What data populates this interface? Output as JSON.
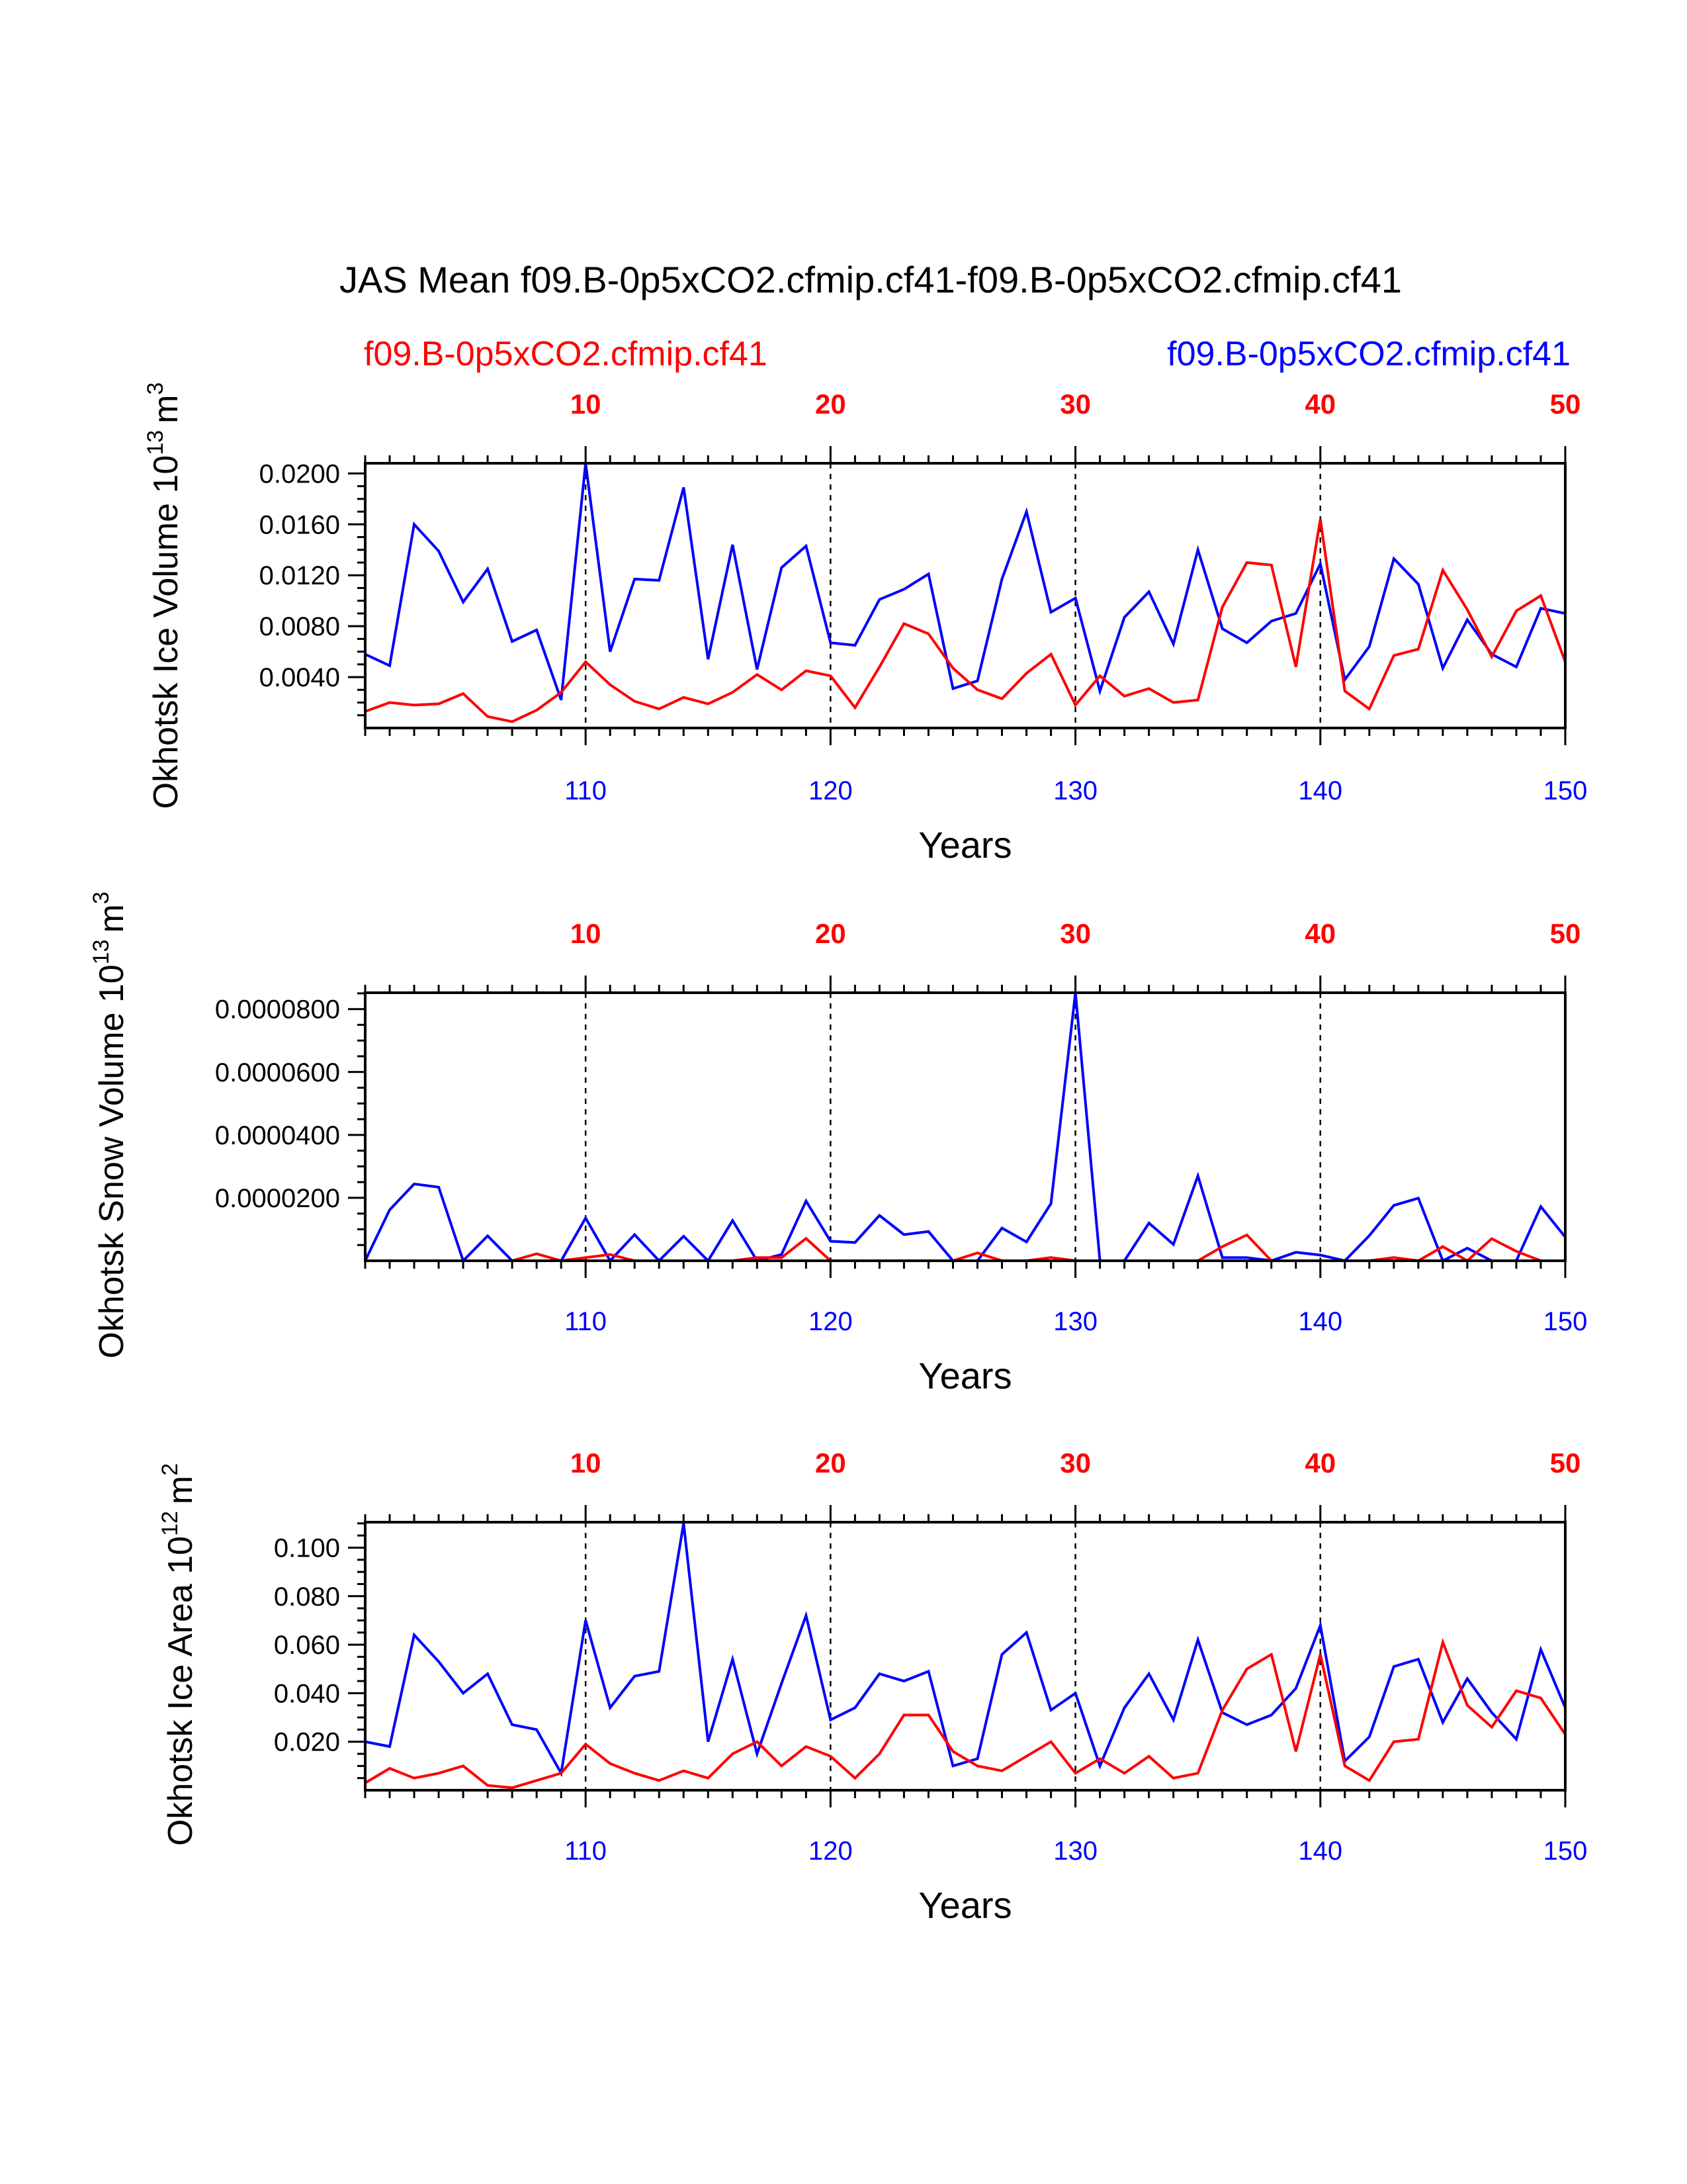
{
  "chart_data": [
    {
      "type": "line",
      "title": "JAS Mean f09.B-0p5xCO2.cfmip.cf41-f09.B-0p5xCO2.cfmip.cf41",
      "legend": [
        {
          "name": "f09.B-0p5xCO2.cfmip.cf41",
          "color": "#ff0000",
          "position": "top-left"
        },
        {
          "name": "f09.B-0p5xCO2.cfmip.cf41",
          "color": "#0000ff",
          "position": "top-right"
        }
      ],
      "ylabel": "Okhotsk Ice Volume 10",
      "ylabel_sup": "13",
      "ylabel_unit": "m",
      "ylabel_unit_sup": "3",
      "xlabel": "Years",
      "xlim": [
        101,
        150
      ],
      "ylim": [
        0.0,
        0.0208
      ],
      "yticks": [
        0.004,
        0.008,
        0.012,
        0.016,
        0.02
      ],
      "ytick_labels": [
        "0.0040",
        "0.0080",
        "0.0120",
        "0.0160",
        "0.0200"
      ],
      "x_bottom_ticks": [
        110,
        120,
        130,
        140,
        150
      ],
      "x_top_tick_labels": [
        "10",
        "20",
        "30",
        "40",
        "50"
      ],
      "x": [
        101,
        102,
        103,
        104,
        105,
        106,
        107,
        108,
        109,
        110,
        111,
        112,
        113,
        114,
        115,
        116,
        117,
        118,
        119,
        120,
        121,
        122,
        123,
        124,
        125,
        126,
        127,
        128,
        129,
        130,
        131,
        132,
        133,
        134,
        135,
        136,
        137,
        138,
        139,
        140,
        141,
        142,
        143,
        144,
        145,
        146,
        147,
        148,
        149,
        150
      ],
      "series": [
        {
          "name": "f09.B-0p5xCO2.cfmip.cf41",
          "color": "#0000ff",
          "values": [
            0.0058,
            0.0049,
            0.016,
            0.0139,
            0.0099,
            0.0125,
            0.0068,
            0.0077,
            0.0022,
            0.0208,
            0.006,
            0.0117,
            0.0116,
            0.0189,
            0.0054,
            0.0144,
            0.0046,
            0.0126,
            0.0143,
            0.0067,
            0.0065,
            0.0101,
            0.0109,
            0.0121,
            0.0031,
            0.0037,
            0.0117,
            0.017,
            0.0091,
            0.0102,
            0.0029,
            0.0087,
            0.0107,
            0.0066,
            0.014,
            0.0078,
            0.0067,
            0.0084,
            0.009,
            0.0129,
            0.0038,
            0.0064,
            0.0133,
            0.0113,
            0.0047,
            0.0085,
            0.0058,
            0.0048,
            0.0094,
            0.009
          ]
        },
        {
          "name": "f09.B-0p5xCO2.cfmip.cf41",
          "color": "#ff0000",
          "values": [
            0.0013,
            0.002,
            0.0018,
            0.0019,
            0.0027,
            0.0009,
            0.0005,
            0.0014,
            0.0028,
            0.0052,
            0.0034,
            0.0021,
            0.0015,
            0.0024,
            0.0019,
            0.0028,
            0.0042,
            0.003,
            0.0045,
            0.0041,
            0.0016,
            0.0048,
            0.0082,
            0.0074,
            0.0047,
            0.003,
            0.0023,
            0.0043,
            0.0058,
            0.0018,
            0.0041,
            0.0025,
            0.0031,
            0.002,
            0.0022,
            0.0095,
            0.013,
            0.0128,
            0.0048,
            0.0164,
            0.0029,
            0.0015,
            0.0057,
            0.0062,
            0.0124,
            0.0093,
            0.0056,
            0.0092,
            0.0104,
            0.0052
          ]
        }
      ]
    },
    {
      "type": "line",
      "ylabel": "Okhotsk Snow Volume 10",
      "ylabel_sup": "13",
      "ylabel_unit": "m",
      "ylabel_unit_sup": "3",
      "xlabel": "Years",
      "xlim": [
        101,
        150
      ],
      "ylim": [
        0.0,
        8.52e-05
      ],
      "yticks": [
        2e-05,
        4e-05,
        6e-05,
        8e-05
      ],
      "ytick_labels": [
        "0.0000200",
        "0.0000400",
        "0.0000600",
        "0.0000800"
      ],
      "x_bottom_ticks": [
        110,
        120,
        130,
        140,
        150
      ],
      "x_top_tick_labels": [
        "10",
        "20",
        "30",
        "40",
        "50"
      ],
      "x": [
        101,
        102,
        103,
        104,
        105,
        106,
        107,
        108,
        109,
        110,
        111,
        112,
        113,
        114,
        115,
        116,
        117,
        118,
        119,
        120,
        121,
        122,
        123,
        124,
        125,
        126,
        127,
        128,
        129,
        130,
        131,
        132,
        133,
        134,
        135,
        136,
        137,
        138,
        139,
        140,
        141,
        142,
        143,
        144,
        145,
        146,
        147,
        148,
        149,
        150
      ],
      "series": [
        {
          "name": "f09.B-0p5xCO2.cfmip.cf41",
          "color": "#0000ff",
          "values": [
            0.0,
            1.62e-05,
            2.44e-05,
            2.34e-05,
            0.0,
            7.9e-06,
            0.0,
            0.0,
            0.0,
            1.36e-05,
            0.0,
            8.3e-06,
            0.0,
            7.8e-06,
            0.0,
            1.28e-05,
            0.0,
            2e-06,
            1.9e-05,
            6.2e-06,
            5.8e-06,
            1.44e-05,
            8.3e-06,
            9.3e-06,
            0.0,
            0.0,
            1.04e-05,
            6e-06,
            1.82e-05,
            8.52e-05,
            0.0,
            0.0,
            1.2e-05,
            5.2e-06,
            2.7e-05,
            1e-06,
            1e-06,
            0.0,
            2.7e-06,
            1.8e-06,
            0.0,
            8e-06,
            1.76e-05,
            1.99e-05,
            0.0,
            4e-06,
            0.0,
            0.0,
            1.72e-05,
            7.5e-06
          ]
        },
        {
          "name": "f09.B-0p5xCO2.cfmip.cf41",
          "color": "#ff0000",
          "values": [
            0.0,
            0.0,
            0.0,
            0.0,
            0.0,
            0.0,
            0.0,
            2.2e-06,
            0.0,
            1e-06,
            2e-06,
            0.0,
            0.0,
            0.0,
            0.0,
            0.0,
            1e-06,
            1e-06,
            7.1e-06,
            0.0,
            0.0,
            0.0,
            0.0,
            0.0,
            0.0,
            2.5e-06,
            0.0,
            0.0,
            1e-06,
            0.0,
            0.0,
            0.0,
            0.0,
            0.0,
            0.0,
            4.5e-06,
            8.2e-06,
            0.0,
            0.0,
            0.0,
            0.0,
            0.0,
            1e-06,
            0.0,
            4.5e-06,
            0.0,
            7e-06,
            3e-06,
            0.0,
            0.0
          ]
        }
      ]
    },
    {
      "type": "line",
      "ylabel": "Okhotsk Ice Area 10",
      "ylabel_sup": "12",
      "ylabel_unit": "m",
      "ylabel_unit_sup": "2",
      "xlabel": "Years",
      "xlim": [
        101,
        150
      ],
      "ylim": [
        0.0,
        0.1105
      ],
      "yticks": [
        0.02,
        0.04,
        0.06,
        0.08,
        0.1
      ],
      "ytick_labels": [
        "0.020",
        "0.040",
        "0.060",
        "0.080",
        "0.100"
      ],
      "x_bottom_ticks": [
        110,
        120,
        130,
        140,
        150
      ],
      "x_top_tick_labels": [
        "10",
        "20",
        "30",
        "40",
        "50"
      ],
      "x": [
        101,
        102,
        103,
        104,
        105,
        106,
        107,
        108,
        109,
        110,
        111,
        112,
        113,
        114,
        115,
        116,
        117,
        118,
        119,
        120,
        121,
        122,
        123,
        124,
        125,
        126,
        127,
        128,
        129,
        130,
        131,
        132,
        133,
        134,
        135,
        136,
        137,
        138,
        139,
        140,
        141,
        142,
        143,
        144,
        145,
        146,
        147,
        148,
        149,
        150
      ],
      "series": [
        {
          "name": "f09.B-0p5xCO2.cfmip.cf41",
          "color": "#0000ff",
          "values": [
            0.02,
            0.018,
            0.064,
            0.053,
            0.04,
            0.048,
            0.027,
            0.025,
            0.007,
            0.07,
            0.034,
            0.047,
            0.049,
            0.11,
            0.02,
            0.054,
            0.015,
            0.044,
            0.072,
            0.029,
            0.034,
            0.048,
            0.045,
            0.049,
            0.01,
            0.013,
            0.056,
            0.065,
            0.033,
            0.04,
            0.01,
            0.034,
            0.048,
            0.029,
            0.062,
            0.032,
            0.027,
            0.031,
            0.042,
            0.068,
            0.012,
            0.022,
            0.051,
            0.054,
            0.028,
            0.046,
            0.032,
            0.021,
            0.058,
            0.034
          ]
        },
        {
          "name": "f09.B-0p5xCO2.cfmip.cf41",
          "color": "#ff0000",
          "values": [
            0.003,
            0.009,
            0.005,
            0.007,
            0.01,
            0.002,
            0.001,
            0.004,
            0.007,
            0.019,
            0.011,
            0.007,
            0.004,
            0.008,
            0.005,
            0.015,
            0.02,
            0.01,
            0.018,
            0.014,
            0.005,
            0.015,
            0.031,
            0.031,
            0.016,
            0.01,
            0.008,
            0.014,
            0.02,
            0.007,
            0.013,
            0.007,
            0.014,
            0.005,
            0.007,
            0.033,
            0.05,
            0.056,
            0.016,
            0.056,
            0.01,
            0.004,
            0.02,
            0.021,
            0.061,
            0.035,
            0.026,
            0.041,
            0.038,
            0.023
          ]
        }
      ]
    }
  ]
}
